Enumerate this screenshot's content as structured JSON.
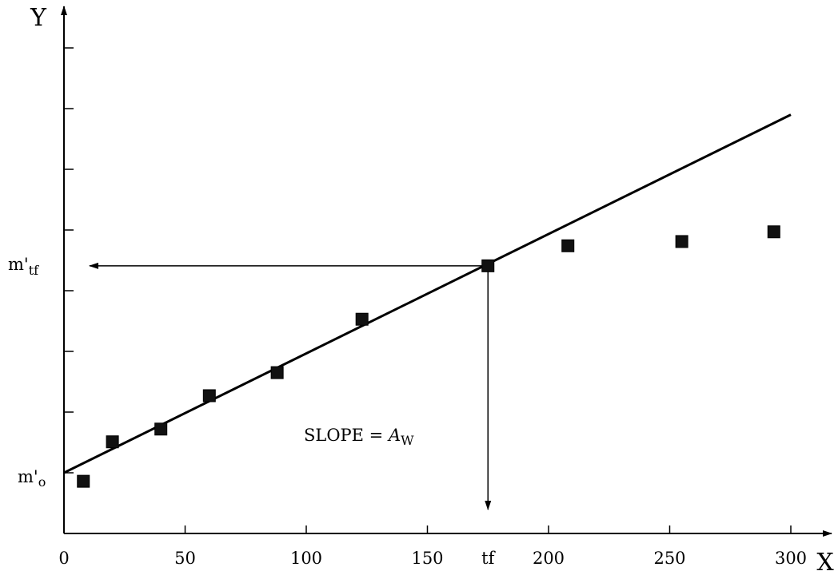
{
  "chart_data": {
    "type": "scatter",
    "title": "",
    "xlabel": "X",
    "ylabel": "Y",
    "xlim": [
      0,
      315
    ],
    "ylim": [
      0,
      8.6
    ],
    "x_ticks": [
      0,
      50,
      100,
      150,
      200,
      250,
      300
    ],
    "x_tick_labels": [
      "0",
      "50",
      "100",
      "150",
      "200",
      "250",
      "300"
    ],
    "y_tick_values": [
      1,
      2,
      3,
      4,
      5,
      6,
      7,
      8
    ],
    "grid": false,
    "series": [
      {
        "type": "scatter",
        "marker": "square",
        "x": [
          8,
          20,
          40,
          60,
          88,
          123,
          175,
          208,
          255,
          293
        ],
        "y": [
          0.86,
          1.51,
          1.72,
          2.27,
          2.65,
          3.53,
          4.41,
          4.74,
          4.81,
          4.97
        ]
      },
      {
        "type": "line",
        "x": [
          0,
          300
        ],
        "y": [
          1.0,
          6.9
        ]
      }
    ],
    "annotations": {
      "slope_prefix": "SLOPE = ",
      "slope_symbol": "A",
      "slope_subscript": "W",
      "y_intercept_label": "m'",
      "y_intercept_sub": "o",
      "y_tf_label": "m'",
      "y_tf_sub": "tf",
      "x_tf_label": "tf",
      "tf_x": 175,
      "tf_y": 4.41,
      "intercept_y": 1.0
    },
    "colors": {
      "axis": "#000000",
      "marker": "#000000",
      "line": "#000000",
      "background": "#ffffff"
    }
  }
}
